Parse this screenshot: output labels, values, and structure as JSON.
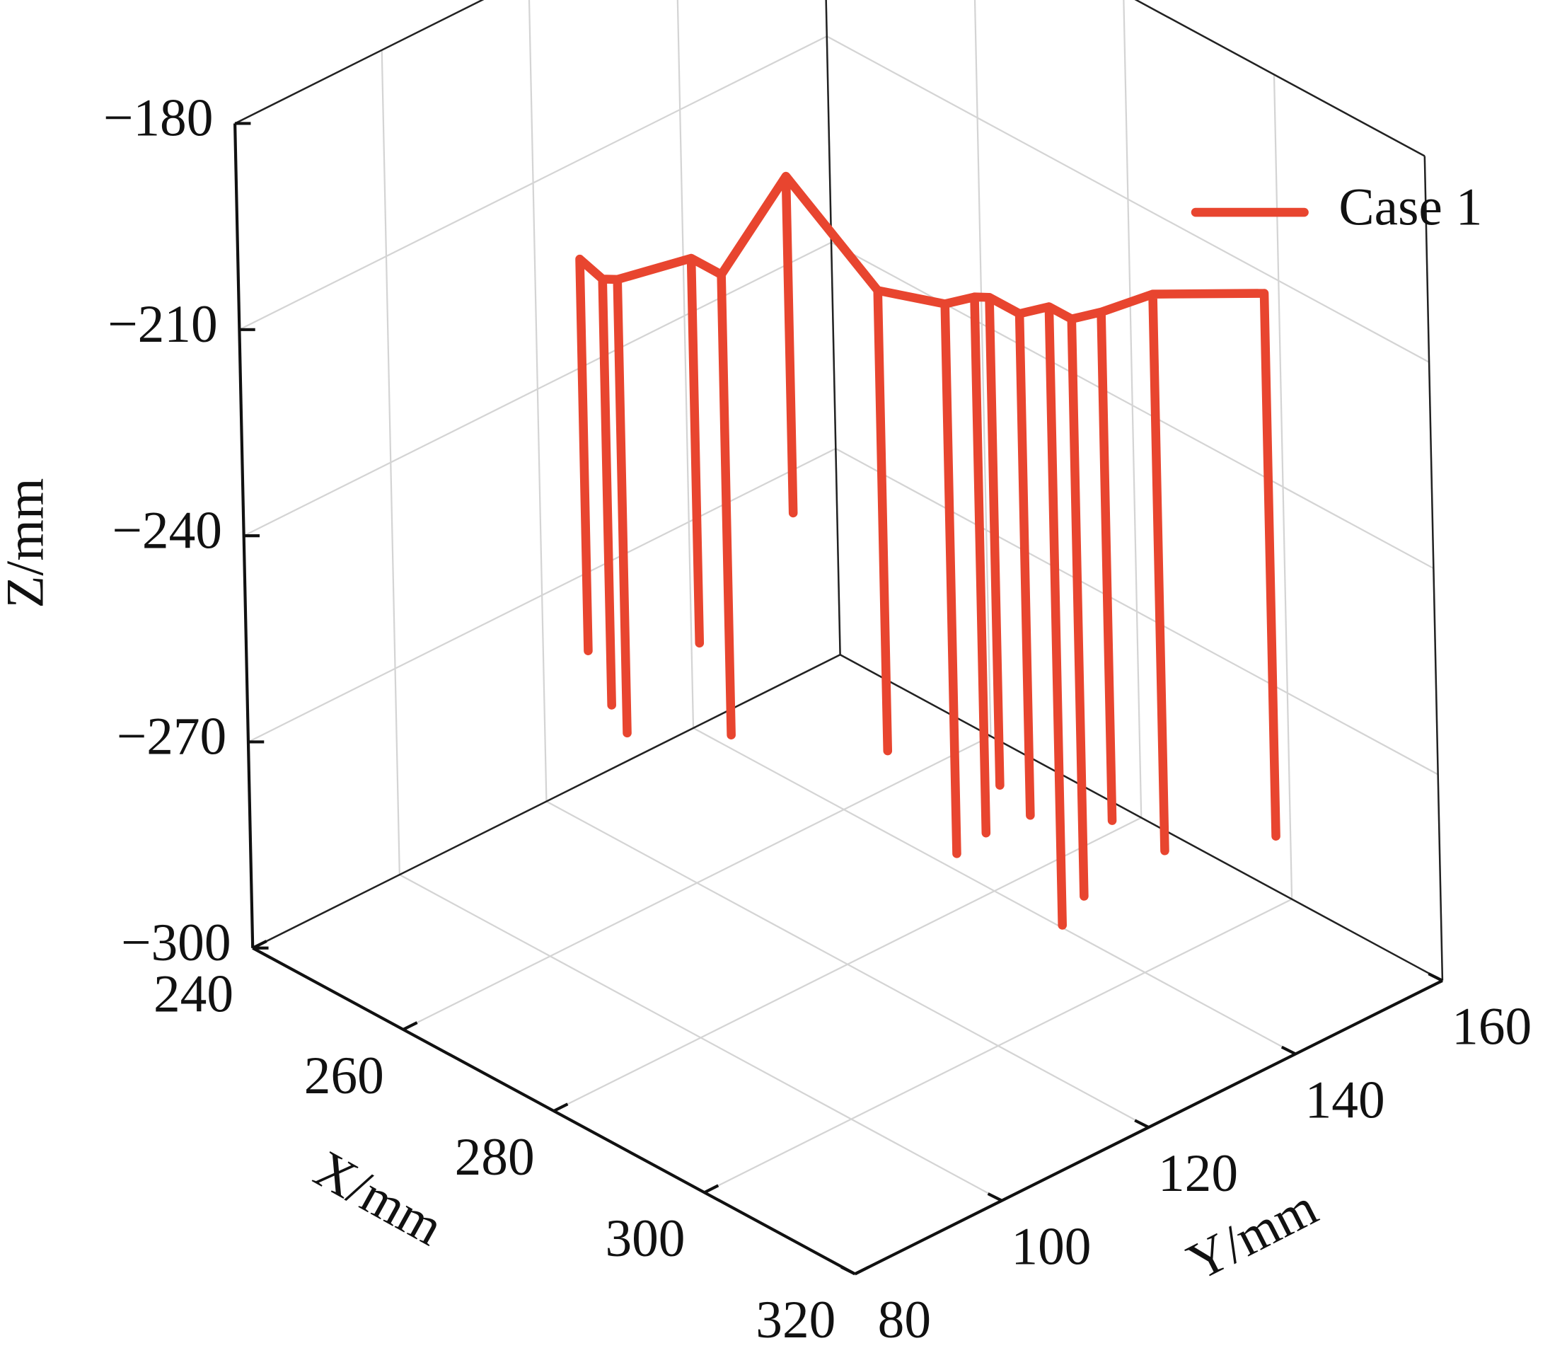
{
  "chart_data": {
    "type": "line3d",
    "xlabel": "X/mm",
    "ylabel": "Y/mm",
    "zlabel": "Z/mm",
    "xlim": [
      240,
      320
    ],
    "xticks": [
      240,
      260,
      280,
      300,
      320
    ],
    "ylim": [
      80,
      160
    ],
    "yticks": [
      80,
      100,
      120,
      140,
      160
    ],
    "zlim": [
      -300,
      -180
    ],
    "zticks": [
      {
        "value": -300,
        "label": "−300"
      },
      {
        "value": -270,
        "label": "−270"
      },
      {
        "value": -240,
        "label": "−240"
      },
      {
        "value": -210,
        "label": "−210"
      },
      {
        "value": -180,
        "label": "−180"
      }
    ],
    "grid": true,
    "legend": "upper right",
    "series": [
      {
        "name": "Case 1",
        "color": "#e8452f",
        "x": [
          266,
          266,
          266,
          270,
          270,
          270,
          271,
          271,
          271,
          273,
          273,
          273,
          277,
          277,
          277,
          273,
          273,
          273,
          289,
          289,
          289,
          295,
          295,
          295,
          296,
          296,
          296,
          297,
          297,
          297,
          301,
          301,
          301,
          302,
          302,
          302,
          305,
          305,
          305,
          306,
          306,
          306,
          307,
          307,
          307,
          314,
          314,
          314
        ],
        "y": [
          100,
          100,
          100,
          99,
          99,
          99,
          100,
          100,
          100,
          108,
          108,
          108,
          108,
          108,
          108,
          121,
          121,
          121,
          117,
          117,
          117,
          120,
          120,
          120,
          123,
          123,
          123,
          124,
          124,
          124,
          124,
          124,
          124,
          127,
          127,
          127,
          127,
          127,
          127,
          130,
          130,
          130,
          136,
          136,
          136,
          144,
          144,
          144
        ],
        "z": [
          -195,
          -252,
          -195,
          -195,
          -257,
          -195,
          -195,
          -261,
          -195,
          -195,
          -251,
          -195,
          -195,
          -262,
          -195,
          -190,
          -239,
          -190,
          -195,
          -262,
          -195,
          -195,
          -275,
          -195,
          -195,
          -273,
          -195,
          -195,
          -266,
          -195,
          -195,
          -268,
          -195,
          -195,
          -285,
          -195,
          -195,
          -279,
          -195,
          -195,
          -269,
          -195,
          -195,
          -276,
          -195,
          -195,
          -274,
          -195
        ]
      }
    ]
  }
}
